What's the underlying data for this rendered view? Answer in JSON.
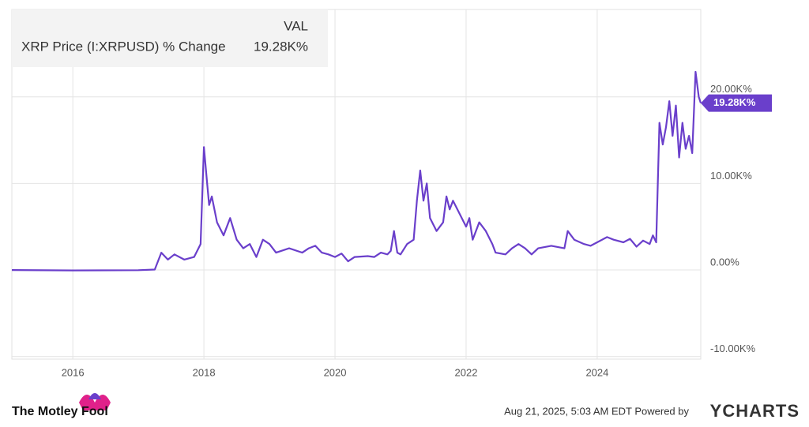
{
  "chart_data": {
    "type": "line",
    "legend": {
      "header": "VAL",
      "value": "19.28K%"
    },
    "end_label": "19.28K%",
    "x": [
      2015.07,
      2016.0,
      2017.0,
      2017.25,
      2017.35,
      2017.45,
      2017.55,
      2017.7,
      2017.85,
      2017.95,
      2018.0,
      2018.05,
      2018.08,
      2018.12,
      2018.2,
      2018.3,
      2018.4,
      2018.5,
      2018.6,
      2018.7,
      2018.8,
      2018.9,
      2019.0,
      2019.1,
      2019.3,
      2019.5,
      2019.6,
      2019.7,
      2019.8,
      2019.9,
      2020.0,
      2020.1,
      2020.2,
      2020.3,
      2020.5,
      2020.6,
      2020.7,
      2020.8,
      2020.85,
      2020.9,
      2020.95,
      2021.0,
      2021.1,
      2021.2,
      2021.25,
      2021.3,
      2021.35,
      2021.4,
      2021.45,
      2021.55,
      2021.65,
      2021.7,
      2021.75,
      2021.8,
      2021.9,
      2022.0,
      2022.05,
      2022.1,
      2022.2,
      2022.3,
      2022.4,
      2022.45,
      2022.6,
      2022.7,
      2022.8,
      2022.9,
      2023.0,
      2023.1,
      2023.3,
      2023.5,
      2023.55,
      2023.65,
      2023.8,
      2023.9,
      2024.0,
      2024.15,
      2024.25,
      2024.4,
      2024.5,
      2024.6,
      2024.7,
      2024.8,
      2024.85,
      2024.9,
      2024.95,
      2025.0,
      2025.05,
      2025.1,
      2025.15,
      2025.2,
      2025.25,
      2025.3,
      2025.35,
      2025.4,
      2025.45,
      2025.5,
      2025.55,
      2025.58
    ],
    "series": [
      {
        "name": "XRP Price (I:XRPUSD) % Change",
        "color": "#6a3fcb",
        "values": [
          0,
          -50,
          -20,
          50,
          2000,
          1200,
          1800,
          1200,
          1500,
          3000,
          14200,
          10000,
          7500,
          8500,
          5500,
          4000,
          6000,
          3500,
          2500,
          3000,
          1500,
          3500,
          3000,
          2000,
          2500,
          2000,
          2500,
          2800,
          2000,
          1800,
          1500,
          1900,
          1000,
          1500,
          1600,
          1500,
          2000,
          1800,
          2200,
          4500,
          2000,
          1800,
          3000,
          3500,
          8000,
          11500,
          8000,
          10000,
          6000,
          4500,
          5500,
          8500,
          7000,
          8000,
          6500,
          5000,
          6000,
          3500,
          5500,
          4500,
          3000,
          2000,
          1800,
          2500,
          3000,
          2500,
          1800,
          2500,
          2800,
          2500,
          4500,
          3500,
          3000,
          2800,
          3200,
          3800,
          3500,
          3200,
          3600,
          2700,
          3400,
          3000,
          4000,
          3200,
          17000,
          14500,
          16500,
          19500,
          15500,
          19000,
          13000,
          17000,
          14000,
          15500,
          13500,
          22900,
          20000,
          19280
        ]
      }
    ],
    "xlim": [
      2015.07,
      2025.58
    ],
    "xticks": [
      2016,
      2018,
      2020,
      2022,
      2024
    ],
    "ylim": [
      -10300,
      30100
    ],
    "yticks": [
      {
        "value": -10000,
        "label": "-10.00K%"
      },
      {
        "value": 0,
        "label": "0.00%"
      },
      {
        "value": 10000,
        "label": "10.00K%"
      },
      {
        "value": 20000,
        "label": "20.00K%"
      }
    ],
    "grid": true
  },
  "footer": {
    "brand": "The Motley Fool",
    "timestamp": "Aug 21, 2025, 5:03 AM EDT Powered by",
    "provider": "YCHARTS"
  }
}
